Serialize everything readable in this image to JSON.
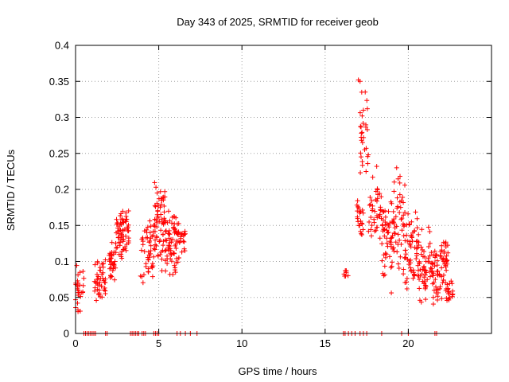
{
  "chart_data": {
    "type": "scatter",
    "title": "Day 343 of 2025, SRMTID for receiver geob",
    "xlabel": "GPS time / hours",
    "ylabel": "SRMTID / TECUs",
    "xlim": [
      0,
      25
    ],
    "ylim": [
      0,
      0.4
    ],
    "x_ticks": [
      0,
      5,
      10,
      15,
      20
    ],
    "x_tick_labels": [
      "0",
      "5",
      "10",
      "15",
      "20"
    ],
    "y_ticks": [
      0,
      0.05,
      0.1,
      0.15,
      0.2,
      0.25,
      0.3,
      0.35,
      0.4
    ],
    "y_tick_labels": [
      "0",
      "0.05",
      "0.1",
      "0.15",
      "0.2",
      "0.25",
      "0.3",
      "0.35",
      "0.4"
    ],
    "grid": true,
    "marker": "+",
    "color": "#ff0000",
    "zero_points_x": [
      0.5,
      0.6,
      0.7,
      0.8,
      0.9,
      1.0,
      1.1,
      1.2,
      1.8,
      1.9,
      3.3,
      3.4,
      3.5,
      3.6,
      3.7,
      3.8,
      4.0,
      4.1,
      4.2,
      4.7,
      4.8,
      4.9,
      5.0,
      6.1,
      6.3,
      6.6,
      6.9,
      7.3,
      16.1,
      16.2,
      16.4,
      16.6,
      16.8,
      17.1,
      17.3,
      17.5,
      18.4,
      19.6,
      20.0,
      21.6,
      21.7
    ],
    "clusters": [
      {
        "x_range": [
          0.0,
          0.5
        ],
        "y_range": [
          0.025,
          0.1
        ],
        "count": 28
      },
      {
        "x_range": [
          1.1,
          1.8
        ],
        "y_range": [
          0.038,
          0.112
        ],
        "count": 45
      },
      {
        "x_range": [
          2.0,
          2.4
        ],
        "y_range": [
          0.06,
          0.135
        ],
        "count": 30
      },
      {
        "x_range": [
          2.4,
          3.2
        ],
        "y_range": [
          0.1,
          0.175
        ],
        "count": 70
      },
      {
        "x_range": [
          3.9,
          4.7
        ],
        "y_range": [
          0.063,
          0.17
        ],
        "count": 45
      },
      {
        "x_range": [
          4.7,
          5.4
        ],
        "y_range": [
          0.08,
          0.22
        ],
        "count": 65
      },
      {
        "x_range": [
          5.4,
          6.3
        ],
        "y_range": [
          0.07,
          0.175
        ],
        "count": 75
      },
      {
        "x_range": [
          6.3,
          6.6
        ],
        "y_range": [
          0.11,
          0.16
        ],
        "count": 14
      },
      {
        "x_range": [
          16.1,
          16.6
        ],
        "y_range": [
          0.065,
          0.1
        ],
        "count": 8
      },
      {
        "x_range": [
          16.9,
          17.3
        ],
        "y_range": [
          0.12,
          0.2
        ],
        "count": 22
      },
      {
        "x_range": [
          17.1,
          17.6
        ],
        "y_range": [
          0.2,
          0.352
        ],
        "count": 28
      },
      {
        "x_range": [
          17.6,
          18.4
        ],
        "y_range": [
          0.12,
          0.22
        ],
        "count": 40
      },
      {
        "x_range": [
          18.4,
          19.0
        ],
        "y_range": [
          0.05,
          0.2
        ],
        "count": 45
      },
      {
        "x_range": [
          19.0,
          19.8
        ],
        "y_range": [
          0.08,
          0.23
        ],
        "count": 55
      },
      {
        "x_range": [
          19.8,
          20.6
        ],
        "y_range": [
          0.05,
          0.185
        ],
        "count": 55
      },
      {
        "x_range": [
          20.6,
          21.3
        ],
        "y_range": [
          0.025,
          0.15
        ],
        "count": 50
      },
      {
        "x_range": [
          21.3,
          22.0
        ],
        "y_range": [
          0.035,
          0.13
        ],
        "count": 50
      },
      {
        "x_range": [
          22.0,
          22.4
        ],
        "y_range": [
          0.06,
          0.14
        ],
        "count": 30
      },
      {
        "x_range": [
          22.2,
          22.7
        ],
        "y_range": [
          0.035,
          0.075
        ],
        "count": 20
      }
    ]
  }
}
